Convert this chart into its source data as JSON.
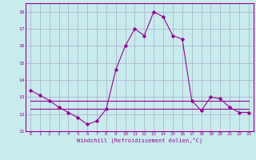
{
  "xlabel": "Windchill (Refroidissement éolien,°C)",
  "bg_color": "#c8ecec",
  "line_color": "#990099",
  "grid_color": "#aaaacc",
  "x_hours": [
    0,
    1,
    2,
    3,
    4,
    5,
    6,
    7,
    8,
    9,
    10,
    11,
    12,
    13,
    14,
    15,
    16,
    17,
    18,
    19,
    20,
    21,
    22,
    23
  ],
  "main_curve": [
    13.4,
    13.1,
    12.8,
    12.4,
    12.1,
    11.8,
    11.4,
    11.6,
    12.3,
    14.6,
    16.0,
    17.0,
    16.6,
    18.0,
    17.7,
    16.6,
    16.4,
    12.8,
    12.2,
    13.0,
    12.9,
    12.4,
    12.1,
    12.1
  ],
  "line2": [
    12.8,
    12.8,
    12.8,
    12.8,
    12.8,
    12.8,
    12.8,
    12.8,
    12.8,
    12.8,
    12.8,
    12.8,
    12.8,
    12.8,
    12.8,
    12.8,
    12.8,
    12.8,
    12.8,
    12.8,
    12.8,
    12.8,
    12.8,
    12.8
  ],
  "line3": [
    12.3,
    12.3,
    12.3,
    12.3,
    12.3,
    12.3,
    12.3,
    12.3,
    12.3,
    12.3,
    12.3,
    12.3,
    12.3,
    12.3,
    12.3,
    12.3,
    12.3,
    12.3,
    12.3,
    12.3,
    12.3,
    12.3,
    12.3,
    12.3
  ],
  "ylim": [
    11,
    18.5
  ],
  "yticks": [
    11,
    12,
    13,
    14,
    15,
    16,
    17,
    18
  ],
  "xticks": [
    0,
    1,
    2,
    3,
    4,
    5,
    6,
    7,
    8,
    9,
    10,
    11,
    12,
    13,
    14,
    15,
    16,
    17,
    18,
    19,
    20,
    21,
    22,
    23
  ]
}
